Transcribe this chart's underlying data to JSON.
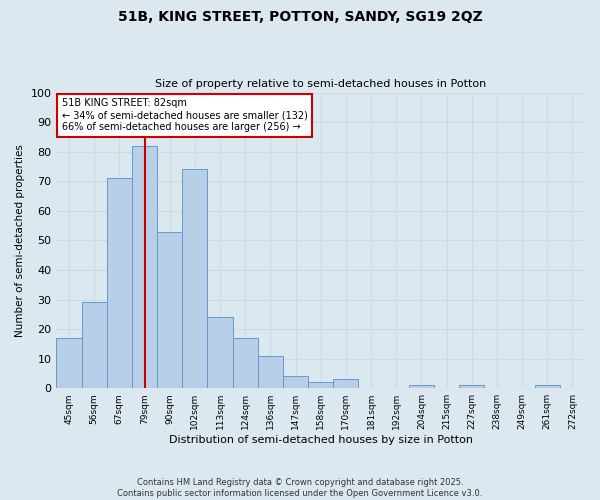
{
  "title": "51B, KING STREET, POTTON, SANDY, SG19 2QZ",
  "subtitle": "Size of property relative to semi-detached houses in Potton",
  "xlabel": "Distribution of semi-detached houses by size in Potton",
  "ylabel": "Number of semi-detached properties",
  "tick_labels": [
    "45sqm",
    "56sqm",
    "67sqm",
    "79sqm",
    "90sqm",
    "102sqm",
    "113sqm",
    "124sqm",
    "136sqm",
    "147sqm",
    "158sqm",
    "170sqm",
    "181sqm",
    "192sqm",
    "204sqm",
    "215sqm",
    "227sqm",
    "238sqm",
    "249sqm",
    "261sqm",
    "272sqm"
  ],
  "counts": [
    17,
    29,
    71,
    82,
    53,
    74,
    24,
    17,
    11,
    4,
    2,
    3,
    0,
    0,
    1,
    0,
    1,
    0,
    0,
    1,
    0
  ],
  "bar_color": "#b8cfe8",
  "bar_edge_color": "#6699cc",
  "vline_bin_index": 3,
  "vline_color": "#cc0000",
  "annotation_title": "51B KING STREET: 82sqm",
  "annotation_line1": "← 34% of semi-detached houses are smaller (132)",
  "annotation_line2": "66% of semi-detached houses are larger (256) →",
  "annotation_box_color": "#ffffff",
  "annotation_box_edge": "#cc0000",
  "ylim": [
    0,
    100
  ],
  "yticks": [
    0,
    10,
    20,
    30,
    40,
    50,
    60,
    70,
    80,
    90,
    100
  ],
  "grid_color": "#d0d8e8",
  "background_color": "#dce8f0",
  "title_fontsize": 10,
  "subtitle_fontsize": 8,
  "footer": "Contains HM Land Registry data © Crown copyright and database right 2025.\nContains public sector information licensed under the Open Government Licence v3.0."
}
